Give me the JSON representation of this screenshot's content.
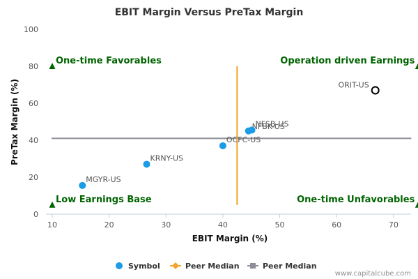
{
  "chart_data": {
    "type": "scatter",
    "title": "EBIT Margin Versus PreTax Margin",
    "xlabel": "EBIT Margin (%)",
    "ylabel": "PreTax Margin (%)",
    "xlim": [
      10,
      73
    ],
    "ylim": [
      0,
      100
    ],
    "x_ticks": [
      10,
      20,
      30,
      40,
      50,
      60,
      70
    ],
    "y_ticks": [
      0,
      20,
      40,
      60,
      80,
      100
    ],
    "grid": false,
    "points": [
      {
        "label": "MGYR-US",
        "x": 15.3,
        "y": 15.5
      },
      {
        "label": "KRNY-US",
        "x": 26.6,
        "y": 27.0
      },
      {
        "label": "OCFC-US",
        "x": 40.0,
        "y": 37.0
      },
      {
        "label": "NFBK-US",
        "x": 44.5,
        "y": 45.0
      },
      {
        "label": "NFSB-US",
        "x": 45.1,
        "y": 45.5
      },
      {
        "label": "ORIT-US",
        "x": 66.8,
        "y": 67.0,
        "highlighted": true
      }
    ],
    "peer_median_x": 42.5,
    "peer_median_y": 41,
    "quadrant_labels": {
      "top_left": "One-time Favorables",
      "top_right": "Operation driven Earnings",
      "bottom_left": "Low Earnings Base",
      "bottom_right": "One-time Unfavorables"
    },
    "legend": {
      "placement": "bottom",
      "entries": [
        "Symbol",
        "Peer Median",
        "Peer Median"
      ]
    },
    "colors": {
      "point": "#1c9be6",
      "highlight_outline": "#000000",
      "median_x": "#f4a42a",
      "median_y": "#8e8e9a",
      "quadrant_text": "#006400",
      "axis": "#c0d0e0"
    }
  },
  "footer": {
    "credit": "www.capitalcube.com"
  }
}
